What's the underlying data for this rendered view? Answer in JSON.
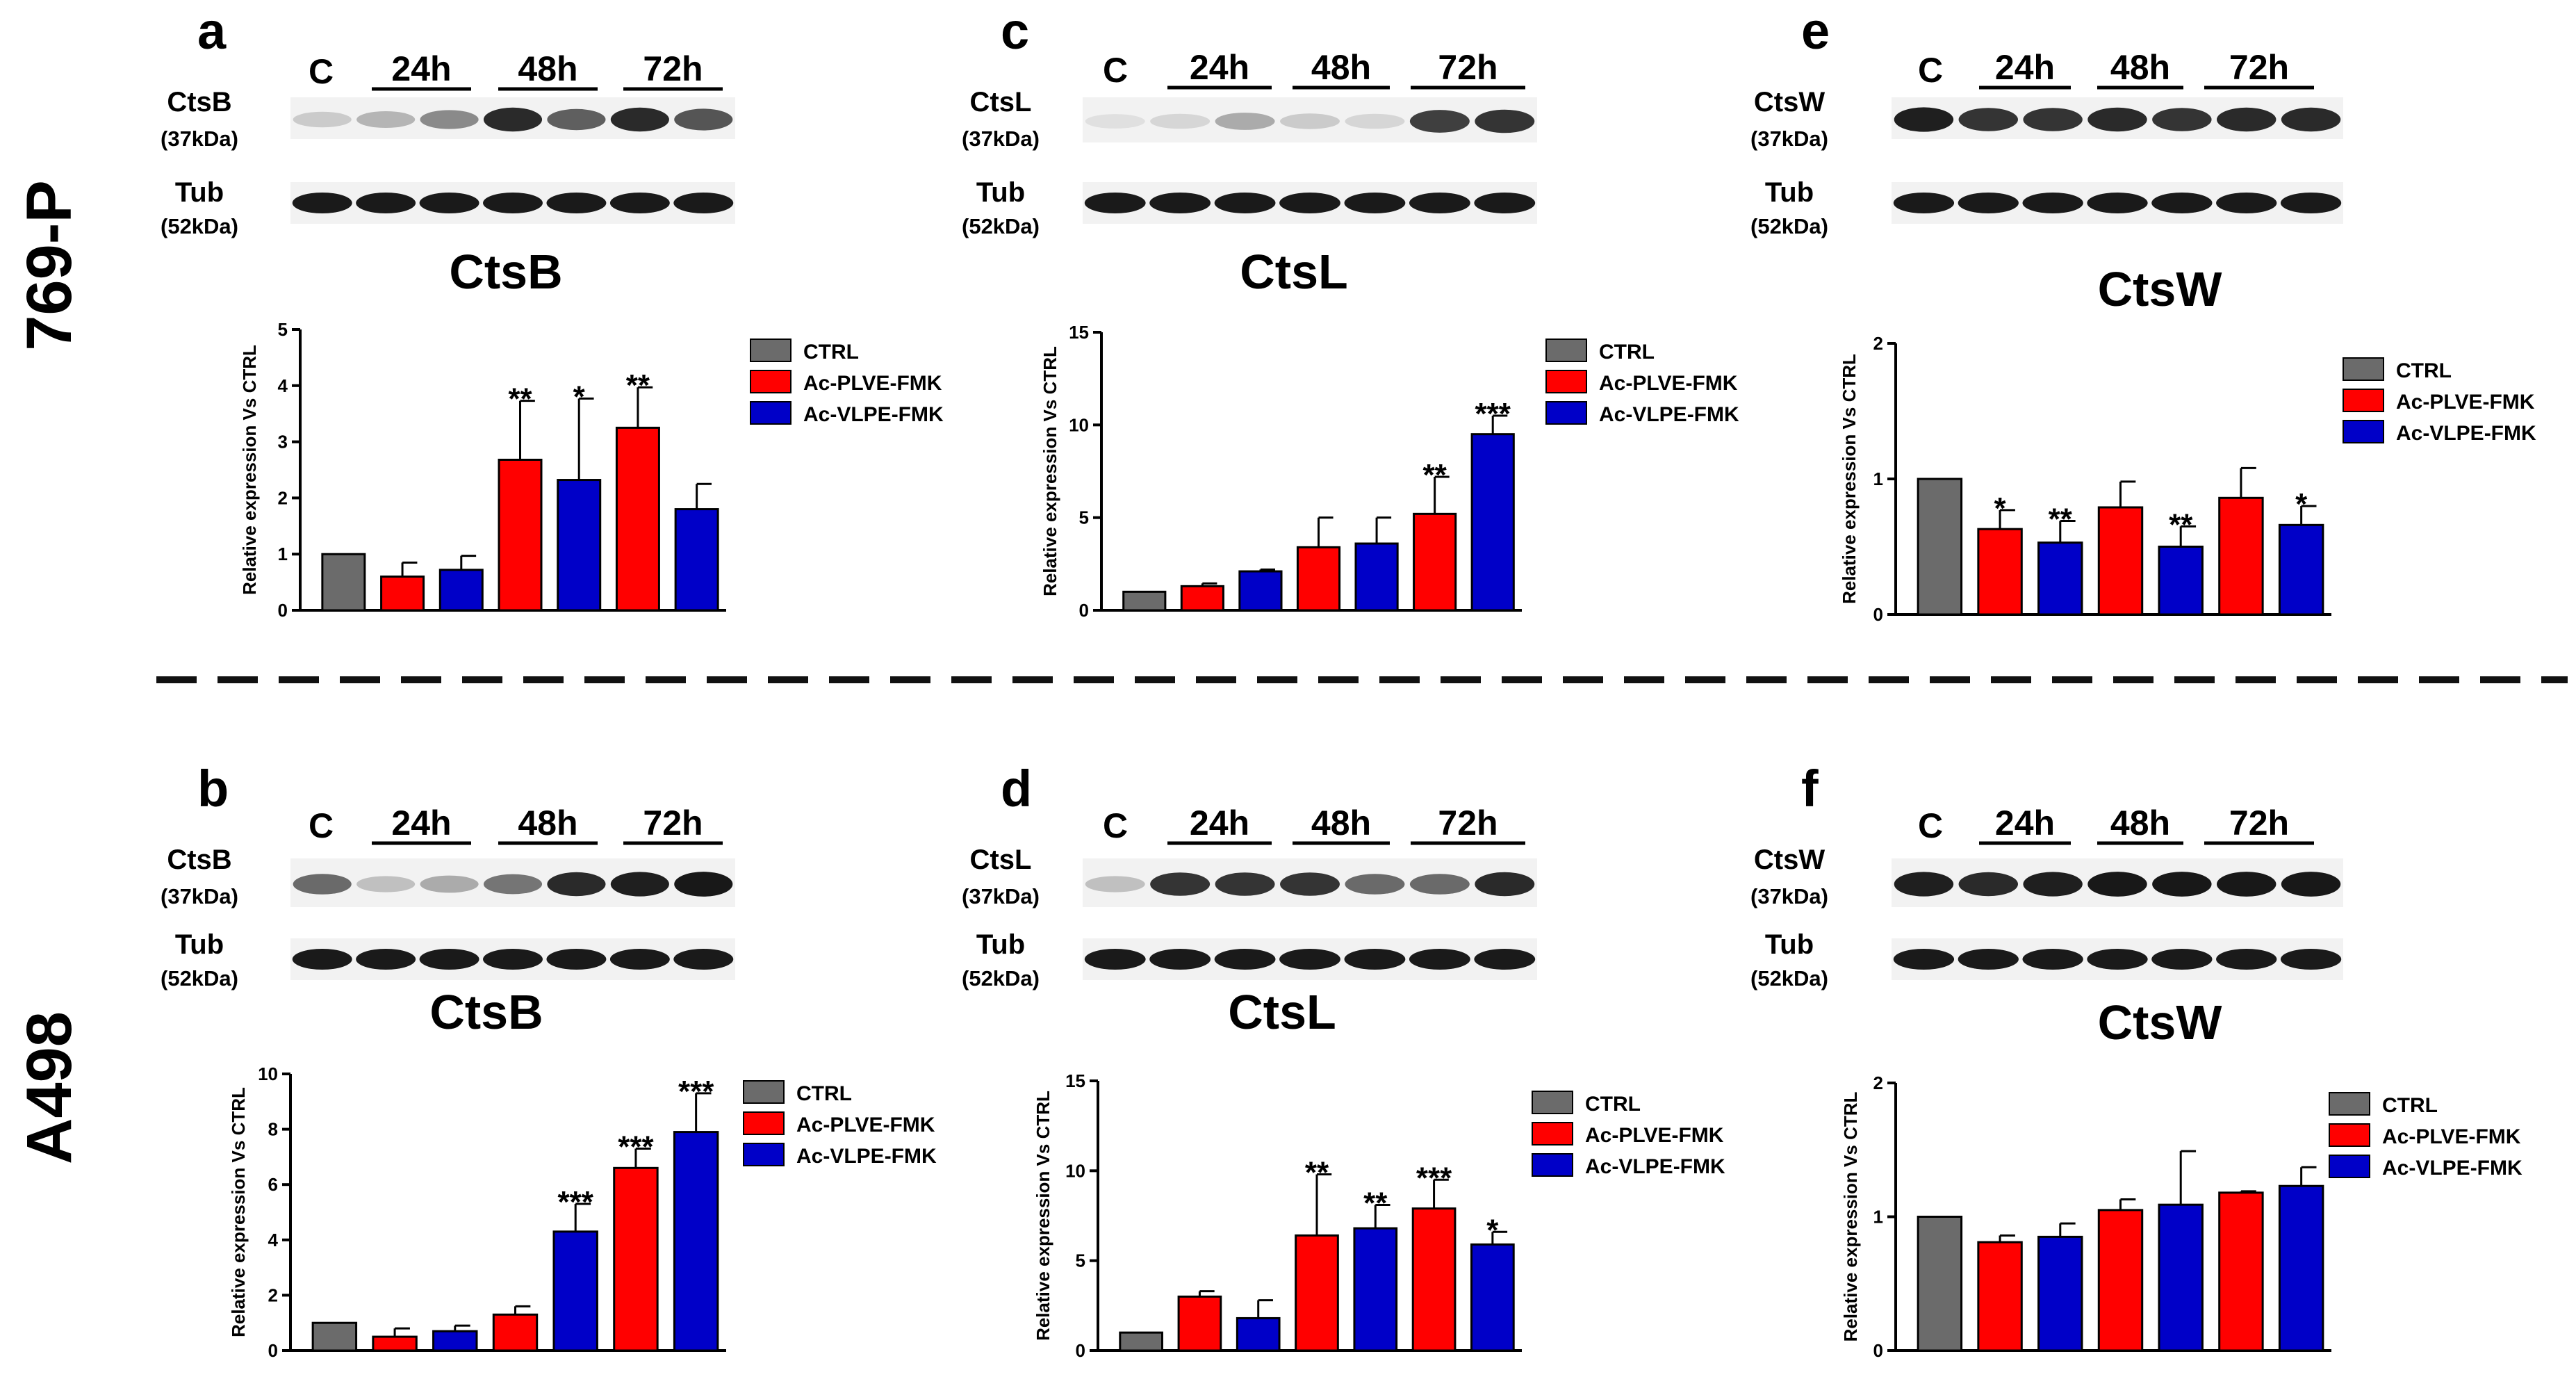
{
  "figure": {
    "cell_lines": [
      {
        "label": "769-P"
      },
      {
        "label": "A498"
      }
    ],
    "lane_labels": [
      "C",
      "24h",
      "48h",
      "72h"
    ],
    "tubulin": {
      "name": "Tub",
      "kda": "(52kDa)"
    },
    "ylabel": "Relative expression Vs CTRL",
    "legend": [
      "CTRL",
      "Ac-PLVE-FMK",
      "Ac-VLPE-FMK"
    ],
    "colors": {
      "CTRL": "#6b6b6b",
      "Ac-PLVE-FMK": "#ff0000",
      "Ac-VLPE-FMK": "#0000c8",
      "axis": "#000000",
      "divider": "#111111"
    }
  },
  "panels": [
    {
      "letter": "a",
      "protein": "CtsB",
      "kda": "(37kDa)",
      "title": "CtsB"
    },
    {
      "letter": "c",
      "protein": "CtsL",
      "kda": "(37kDa)",
      "title": "CtsL"
    },
    {
      "letter": "e",
      "protein": "CtsW",
      "kda": "(37kDa)",
      "title": "CtsW"
    },
    {
      "letter": "b",
      "protein": "CtsB",
      "kda": "(37kDa)",
      "title": "CtsB"
    },
    {
      "letter": "d",
      "protein": "CtsL",
      "kda": "(37kDa)",
      "title": "CtsL"
    },
    {
      "letter": "f",
      "protein": "CtsW",
      "kda": "(37kDa)",
      "title": "CtsW"
    }
  ],
  "chart_data": [
    {
      "type": "bar",
      "panel": "a",
      "title": "CtsB",
      "ylabel": "Relative expression Vs CTRL",
      "ylim": [
        0,
        5
      ],
      "yticks": [
        "0",
        "1",
        "2",
        "3",
        "4",
        "5"
      ],
      "bars": [
        "CTRL",
        "Ac-PLVE-FMK",
        "Ac-VLPE-FMK",
        "Ac-PLVE-FMK",
        "Ac-VLPE-FMK",
        "Ac-PLVE-FMK",
        "Ac-VLPE-FMK"
      ],
      "values": [
        1.0,
        0.6,
        0.72,
        2.68,
        2.32,
        3.25,
        1.8
      ],
      "errors": [
        0,
        0.25,
        0.25,
        1.05,
        1.45,
        0.72,
        0.45
      ],
      "significance": [
        "",
        "",
        "",
        "**",
        "*",
        "**",
        ""
      ]
    },
    {
      "type": "bar",
      "panel": "c",
      "title": "CtsL",
      "ylabel": "Relative expression Vs CTRL",
      "ylim": [
        0,
        15
      ],
      "yticks": [
        "0",
        "5",
        "10",
        "15"
      ],
      "bars": [
        "CTRL",
        "Ac-PLVE-FMK",
        "Ac-VLPE-FMK",
        "Ac-PLVE-FMK",
        "Ac-VLPE-FMK",
        "Ac-PLVE-FMK",
        "Ac-VLPE-FMK"
      ],
      "values": [
        1.0,
        1.3,
        2.1,
        3.4,
        3.6,
        5.2,
        9.5
      ],
      "errors": [
        0,
        0.15,
        0.1,
        1.6,
        1.4,
        2.0,
        1.0
      ],
      "significance": [
        "",
        "",
        "",
        "",
        "",
        "**",
        "***"
      ]
    },
    {
      "type": "bar",
      "panel": "e",
      "title": "CtsW",
      "ylabel": "Relative expression Vs CTRL",
      "ylim": [
        0,
        2
      ],
      "yticks": [
        "0",
        "1",
        "2"
      ],
      "bars": [
        "CTRL",
        "Ac-PLVE-FMK",
        "Ac-VLPE-FMK",
        "Ac-PLVE-FMK",
        "Ac-VLPE-FMK",
        "Ac-PLVE-FMK",
        "Ac-VLPE-FMK"
      ],
      "values": [
        1.0,
        0.63,
        0.53,
        0.79,
        0.5,
        0.86,
        0.66
      ],
      "errors": [
        0,
        0.14,
        0.16,
        0.19,
        0.15,
        0.22,
        0.14
      ],
      "significance": [
        "",
        "*",
        "**",
        "",
        "**",
        "",
        "*"
      ]
    },
    {
      "type": "bar",
      "panel": "b",
      "title": "CtsB",
      "ylabel": "Relative expression Vs CTRL",
      "ylim": [
        0,
        10
      ],
      "yticks": [
        "0",
        "2",
        "4",
        "6",
        "8",
        "10"
      ],
      "bars": [
        "CTRL",
        "Ac-PLVE-FMK",
        "Ac-VLPE-FMK",
        "Ac-PLVE-FMK",
        "Ac-VLPE-FMK",
        "Ac-PLVE-FMK",
        "Ac-VLPE-FMK"
      ],
      "values": [
        1.0,
        0.5,
        0.7,
        1.3,
        4.3,
        6.6,
        7.9
      ],
      "errors": [
        0,
        0.3,
        0.2,
        0.3,
        1.0,
        0.7,
        1.4
      ],
      "significance": [
        "",
        "",
        "",
        "",
        "***",
        "***",
        "***"
      ]
    },
    {
      "type": "bar",
      "panel": "d",
      "title": "CtsL",
      "ylabel": "Relative expression Vs CTRL",
      "ylim": [
        0,
        15
      ],
      "yticks": [
        "0",
        "5",
        "10",
        "15"
      ],
      "bars": [
        "CTRL",
        "Ac-PLVE-FMK",
        "Ac-VLPE-FMK",
        "Ac-PLVE-FMK",
        "Ac-VLPE-FMK",
        "Ac-PLVE-FMK",
        "Ac-VLPE-FMK"
      ],
      "values": [
        1.0,
        3.0,
        1.8,
        6.4,
        6.8,
        7.9,
        5.9
      ],
      "errors": [
        0,
        0.3,
        1.0,
        3.4,
        1.3,
        1.6,
        0.7
      ],
      "significance": [
        "",
        "",
        "",
        "**",
        "**",
        "***",
        "*"
      ]
    },
    {
      "type": "bar",
      "panel": "f",
      "title": "CtsW",
      "ylabel": "Relative expression Vs CTRL",
      "ylim": [
        0,
        2
      ],
      "yticks": [
        "0",
        "1",
        "2"
      ],
      "bars": [
        "CTRL",
        "Ac-PLVE-FMK",
        "Ac-VLPE-FMK",
        "Ac-PLVE-FMK",
        "Ac-VLPE-FMK",
        "Ac-PLVE-FMK",
        "Ac-VLPE-FMK"
      ],
      "values": [
        1.0,
        0.81,
        0.85,
        1.05,
        1.09,
        1.18,
        1.23
      ],
      "errors": [
        0,
        0.05,
        0.1,
        0.08,
        0.4,
        0.01,
        0.14
      ],
      "significance": [
        "",
        "",
        "",
        "",
        "",
        "",
        ""
      ]
    }
  ]
}
